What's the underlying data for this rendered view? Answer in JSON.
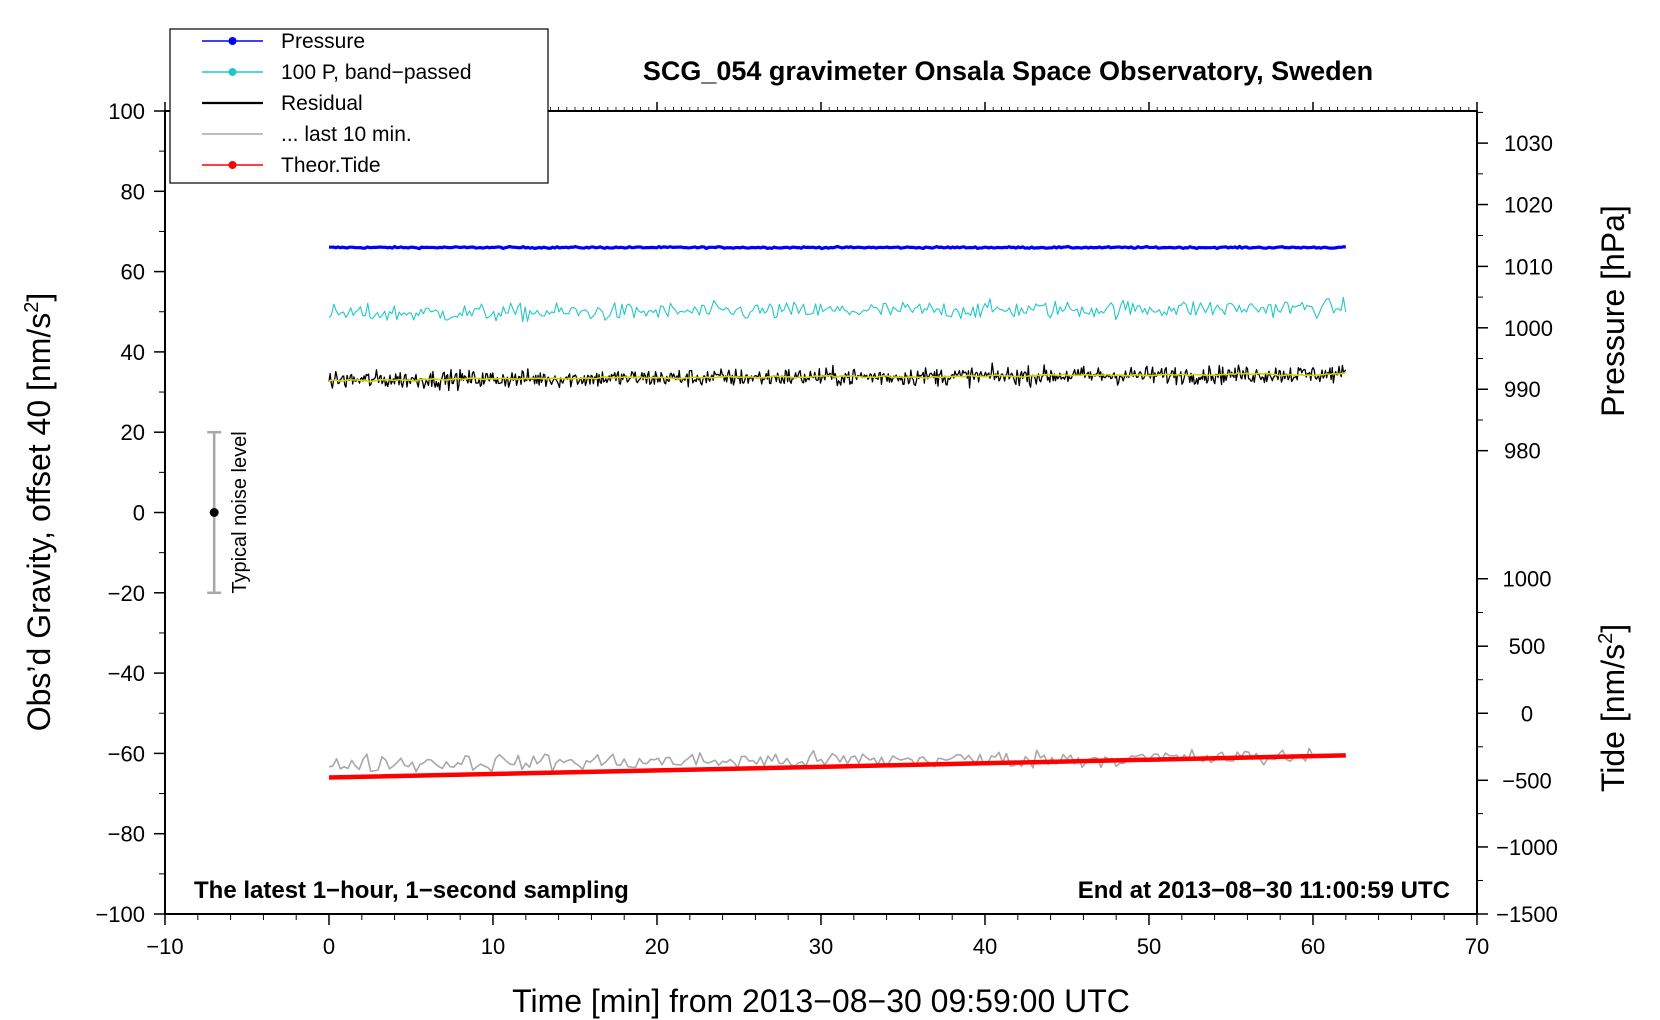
{
  "chart_data": {
    "type": "line",
    "title": "SCG_054 gravimeter Onsala Space Observatory, Sweden",
    "xlabel": "Time [min] from 2013−08−30 09:59:00 UTC",
    "ylabel_left_text": "Obs’d Gravity, offset 40 [nm/s",
    "ylabel_left_sup": "2",
    "ylabel_left_close": "]",
    "ylabel_right_pressure": "Pressure [hPa]",
    "ylabel_right_tide_text": "Tide [nm/s",
    "ylabel_right_tide_sup": "2",
    "ylabel_right_tide_close": "]",
    "xlim": [
      -10,
      70
    ],
    "ylim_left": [
      -100,
      100
    ],
    "x_ticks": [
      -10,
      0,
      10,
      20,
      30,
      40,
      50,
      60,
      70
    ],
    "x_tick_labels": [
      "−10",
      "0",
      "10",
      "20",
      "30",
      "40",
      "50",
      "60",
      "70"
    ],
    "y_left_ticks": [
      100,
      80,
      60,
      40,
      20,
      0,
      -20,
      -40,
      -60,
      -80,
      -100
    ],
    "y_left_tick_labels": [
      "100",
      "80",
      "60",
      "40",
      "20",
      "0",
      "−20",
      "−40",
      "−60",
      "−80",
      "−100"
    ],
    "pressure_axis": {
      "ticks": [
        1030,
        1020,
        1010,
        1000,
        990,
        980
      ],
      "tick_labels": [
        "1030",
        "1020",
        "1010",
        "1000",
        "990",
        "980"
      ],
      "left_equivalent": [
        92,
        76.7,
        61.3,
        46,
        30.7,
        15.4
      ]
    },
    "tide_axis": {
      "ticks": [
        1000,
        500,
        0,
        -500,
        -1000,
        -1500
      ],
      "tick_labels": [
        "1000",
        "500",
        "0",
        "−500",
        "−1000",
        "−1500"
      ],
      "left_equivalent": [
        -16.5,
        -33.3,
        -50,
        -66.7,
        -83.3,
        -100
      ]
    },
    "legend": [
      {
        "label": "Pressure",
        "color": "#0000ff",
        "marker": true
      },
      {
        "label": "100 P, band−passed",
        "color": "#20c8c8",
        "marker": true
      },
      {
        "label": "Residual",
        "color": "#000000",
        "marker": false
      },
      {
        "label": "... last 10 min.",
        "color": "#a8a8a8",
        "marker": false
      },
      {
        "label": "Theor.Tide",
        "color": "#ff0000",
        "marker": true
      }
    ],
    "series": [
      {
        "name": "Pressure",
        "color": "#0000ff",
        "x_range": [
          0,
          62
        ],
        "level": 66,
        "noise": 0.15
      },
      {
        "name": "100 P, band-passed",
        "color": "#20c8c8",
        "x_range": [
          0,
          62
        ],
        "level_start": 49.5,
        "level_end": 51,
        "noise": 1.6
      },
      {
        "name": "Residual",
        "color": "#000000",
        "x_range": [
          0,
          62
        ],
        "level_start": 33,
        "level_end": 34.5,
        "noise": 1.6
      },
      {
        "name": "Residual smoothed",
        "color": "#d4d400",
        "x_range": [
          0,
          62
        ],
        "level_start": 33,
        "level_end": 34.5,
        "noise": 0.3
      },
      {
        "name": "... last 10 min.",
        "color": "#a8a8a8",
        "x_range": [
          0,
          60
        ],
        "level_start": -62.5,
        "level_end": -61,
        "noise": 1.6
      },
      {
        "name": "Theor.Tide",
        "color": "#ff0000",
        "x_range": [
          0,
          62
        ],
        "level_start": -66,
        "level_end": -60.5,
        "noise": 0
      }
    ],
    "noise_marker": {
      "label": "Typical noise level",
      "x": -7,
      "y": 0,
      "y_low": -20,
      "y_high": 20
    },
    "annotation_left": "The latest 1−hour, 1−second sampling",
    "annotation_right": "End at 2013−08−30 11:00:59 UTC"
  }
}
